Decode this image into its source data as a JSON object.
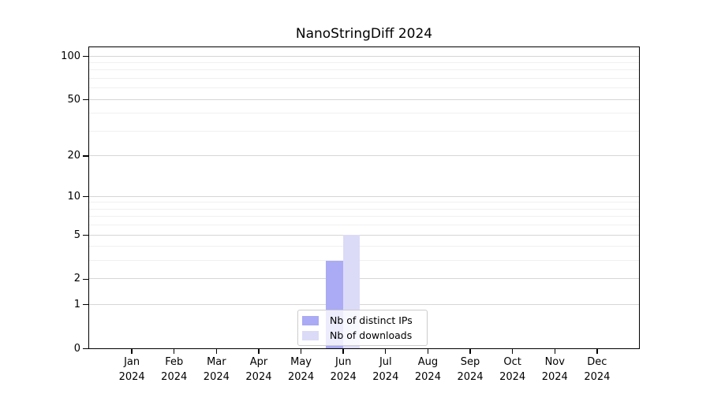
{
  "chart_data": {
    "type": "bar",
    "title": "NanoStringDiff 2024",
    "categories": [
      "Jan 2024",
      "Feb 2024",
      "Mar 2024",
      "Apr 2024",
      "May 2024",
      "Jun 2024",
      "Jul 2024",
      "Aug 2024",
      "Sep 2024",
      "Oct 2024",
      "Nov 2024",
      "Dec 2024"
    ],
    "series": [
      {
        "name": "Nb of distinct IPs",
        "color": "#aaaaf5",
        "values": [
          0,
          0,
          0,
          0,
          0,
          3,
          0,
          0,
          0,
          0,
          0,
          0
        ]
      },
      {
        "name": "Nb of downloads",
        "color": "#dbdbf8",
        "values": [
          0,
          0,
          0,
          0,
          0,
          5,
          0,
          0,
          0,
          0,
          0,
          0
        ]
      }
    ],
    "xlabel": "",
    "ylabel": "",
    "yscale": "log1p",
    "ylim": [
      0,
      115
    ],
    "yticks": [
      0,
      1,
      2,
      5,
      10,
      20,
      50,
      100
    ],
    "yticks_minor": [
      3,
      4,
      6,
      7,
      8,
      9,
      30,
      40,
      60,
      70,
      80,
      90
    ],
    "grid": "on",
    "legend_position": "inside-bottom-center"
  },
  "colors": {
    "background": "#ffffff",
    "axis": "#000000",
    "grid_major": "#d6d6d6",
    "grid_minor": "#f0f0f0",
    "legend_border": "#cccccc",
    "text": "#000000"
  }
}
